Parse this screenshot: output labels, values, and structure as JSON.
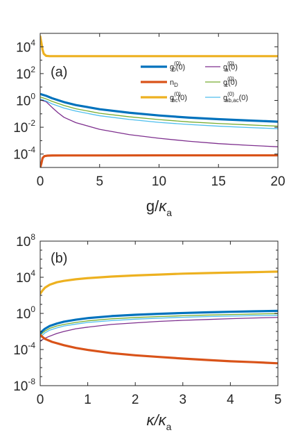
{
  "colors": {
    "gD": "#0072BD",
    "nD": "#D95319",
    "gbc": "#EDB120",
    "ga": "#7E2F8E",
    "gc": "#77AC30",
    "gabac": "#4DBEEE",
    "axis": "#262626"
  },
  "chart_data": [
    {
      "type": "line",
      "panel_label": "(a)",
      "xlabel_main": "g/",
      "xlabel_greek": "κ",
      "xlabel_sub": "a",
      "ylabel": "",
      "xlim": [
        0,
        20
      ],
      "ylim_log10": [
        -5,
        5
      ],
      "yscale": "log",
      "x_ticks": [
        0,
        5,
        10,
        15,
        20
      ],
      "x_tick_labels": [
        "0",
        "5",
        "10",
        "15",
        "20"
      ],
      "y_ticks_log10": [
        -4,
        -2,
        0,
        2,
        4
      ],
      "y_tick_base": "10",
      "y_tick_exps": [
        "-4",
        "-2",
        "0",
        "2",
        "4"
      ],
      "grid": false,
      "legend_position": "upper-right",
      "series": [
        {
          "key": "gD",
          "label_main": "g",
          "label_sup": "(0)",
          "label_sub": "D",
          "label_tail": "(0)",
          "width": 3.2,
          "x": [
            0,
            0.5,
            1,
            2,
            3,
            5,
            7.5,
            10,
            12.5,
            15,
            17.5,
            20
          ],
          "y": [
            3.0,
            2.2,
            1.45,
            0.75,
            0.45,
            0.22,
            0.12,
            0.075,
            0.052,
            0.04,
            0.032,
            0.026
          ]
        },
        {
          "key": "nD",
          "label_main": "n",
          "label_sup": "",
          "label_sub": "D",
          "label_tail": "",
          "width": 3.2,
          "x": [
            0,
            0.1,
            0.2,
            0.35,
            0.6,
            1,
            2,
            5,
            10,
            15,
            20
          ],
          "y": [
            1e-05,
            2e-05,
            5e-05,
            7e-05,
            7.6e-05,
            7.8e-05,
            7.9e-05,
            7.9e-05,
            8e-05,
            8e-05,
            8e-05
          ]
        },
        {
          "key": "gbc",
          "label_main": "g",
          "label_sup": "(0)",
          "label_sub": "bc",
          "label_tail": "(0)",
          "width": 3.2,
          "x": [
            0,
            0.1,
            0.2,
            0.3,
            0.5,
            0.8,
            1.2,
            2,
            5,
            10,
            15,
            20
          ],
          "y": [
            60000,
            20000,
            6000,
            3000,
            2100,
            2000,
            2000,
            2000,
            2000,
            2000,
            2000,
            2000
          ]
        },
        {
          "key": "ga",
          "label_main": "g",
          "label_sup": "(0)",
          "label_sub": "a",
          "label_tail": "(0)",
          "width": 1.3,
          "x": [
            0,
            0.5,
            1,
            1.5,
            2,
            3,
            5,
            7.5,
            10,
            12.5,
            15,
            17.5,
            20
          ],
          "y": [
            1.1,
            0.8,
            0.3,
            0.12,
            0.055,
            0.022,
            0.007,
            0.0028,
            0.0015,
            0.0009,
            0.0006,
            0.00045,
            0.00035
          ]
        },
        {
          "key": "gc",
          "label_main": "g",
          "label_sup": "(0)",
          "label_sub": "c",
          "label_tail": "(0)",
          "width": 1.3,
          "x": [
            0,
            0.5,
            1,
            2,
            3,
            5,
            7.5,
            10,
            12.5,
            15,
            17.5,
            20
          ],
          "y": [
            1.8,
            1.3,
            0.85,
            0.42,
            0.24,
            0.11,
            0.06,
            0.037,
            0.025,
            0.019,
            0.015,
            0.012
          ]
        },
        {
          "key": "gabac",
          "label_main": "g",
          "label_sup": "(0)",
          "label_sub": "ab,ac",
          "label_tail": "(0)",
          "width": 1.3,
          "x": [
            0,
            0.5,
            1,
            2,
            3,
            5,
            7.5,
            10,
            12.5,
            15,
            17.5,
            20
          ],
          "y": [
            1.3,
            0.9,
            0.55,
            0.27,
            0.16,
            0.072,
            0.038,
            0.023,
            0.016,
            0.012,
            0.0095,
            0.0078
          ]
        }
      ]
    },
    {
      "type": "line",
      "panel_label": "(b)",
      "xlabel_main": "",
      "xlabel_greek": "κ/κ",
      "xlabel_sub": "a",
      "ylabel": "",
      "xlim": [
        0,
        5
      ],
      "ylim_log10": [
        -8,
        8
      ],
      "yscale": "log",
      "x_ticks": [
        0,
        1,
        2,
        3,
        4,
        5
      ],
      "x_tick_labels": [
        "0",
        "1",
        "2",
        "3",
        "4",
        "5"
      ],
      "y_ticks_log10": [
        -8,
        -4,
        0,
        4,
        8
      ],
      "y_tick_base": "10",
      "y_tick_exps": [
        "-8",
        "-4",
        "0",
        "4",
        "8"
      ],
      "grid": false,
      "series": [
        {
          "key": "gD",
          "width": 3.2,
          "x": [
            0,
            0.05,
            0.1,
            0.2,
            0.35,
            0.5,
            0.75,
            1,
            1.5,
            2,
            2.5,
            3,
            3.5,
            4,
            4.5,
            5
          ],
          "y": [
            0.006,
            0.012,
            0.02,
            0.04,
            0.075,
            0.12,
            0.2,
            0.3,
            0.5,
            0.7,
            0.9,
            1.1,
            1.3,
            1.5,
            1.7,
            1.9
          ]
        },
        {
          "key": "nD",
          "width": 3.2,
          "x": [
            0,
            0.1,
            0.25,
            0.5,
            0.75,
            1,
            1.5,
            2,
            2.5,
            3,
            3.5,
            4,
            4.5,
            5
          ],
          "y": [
            0.004,
            0.0015,
            0.0007,
            0.0003,
            0.00015,
            9e-05,
            4e-05,
            2.3e-05,
            1.5e-05,
            1e-05,
            7e-06,
            5e-06,
            4e-06,
            3e-06
          ]
        },
        {
          "key": "gbc",
          "width": 3.2,
          "x": [
            0,
            0.05,
            0.1,
            0.2,
            0.35,
            0.5,
            0.75,
            1,
            1.5,
            2,
            2.5,
            3,
            3.5,
            4,
            4.5,
            5
          ],
          "y": [
            150,
            350,
            700,
            1500,
            2800,
            4000,
            6000,
            8000,
            12000,
            16000,
            20000,
            25000,
            29000,
            33000,
            37000,
            42000
          ]
        },
        {
          "key": "ga",
          "width": 1.3,
          "x": [
            0,
            0.05,
            0.1,
            0.2,
            0.35,
            0.5,
            0.75,
            1,
            1.5,
            2,
            2.5,
            3,
            3.5,
            4,
            4.5,
            5
          ],
          "y": [
            0.0008,
            0.0013,
            0.0018,
            0.003,
            0.006,
            0.01,
            0.02,
            0.03,
            0.06,
            0.09,
            0.13,
            0.17,
            0.21,
            0.26,
            0.31,
            0.36
          ]
        },
        {
          "key": "gc",
          "width": 1.3,
          "x": [
            0,
            0.05,
            0.1,
            0.2,
            0.35,
            0.5,
            0.75,
            1,
            1.5,
            2,
            2.5,
            3,
            3.5,
            4,
            4.5,
            5
          ],
          "y": [
            0.0035,
            0.007,
            0.011,
            0.022,
            0.04,
            0.06,
            0.1,
            0.15,
            0.25,
            0.35,
            0.45,
            0.55,
            0.65,
            0.75,
            0.85,
            0.95
          ]
        },
        {
          "key": "gabac",
          "width": 1.3,
          "x": [
            0,
            0.05,
            0.1,
            0.2,
            0.35,
            0.5,
            0.75,
            1,
            1.5,
            2,
            2.5,
            3,
            3.5,
            4,
            4.5,
            5
          ],
          "y": [
            0.002,
            0.004,
            0.007,
            0.014,
            0.025,
            0.04,
            0.065,
            0.1,
            0.16,
            0.23,
            0.3,
            0.37,
            0.44,
            0.5,
            0.56,
            0.62
          ]
        }
      ]
    }
  ]
}
